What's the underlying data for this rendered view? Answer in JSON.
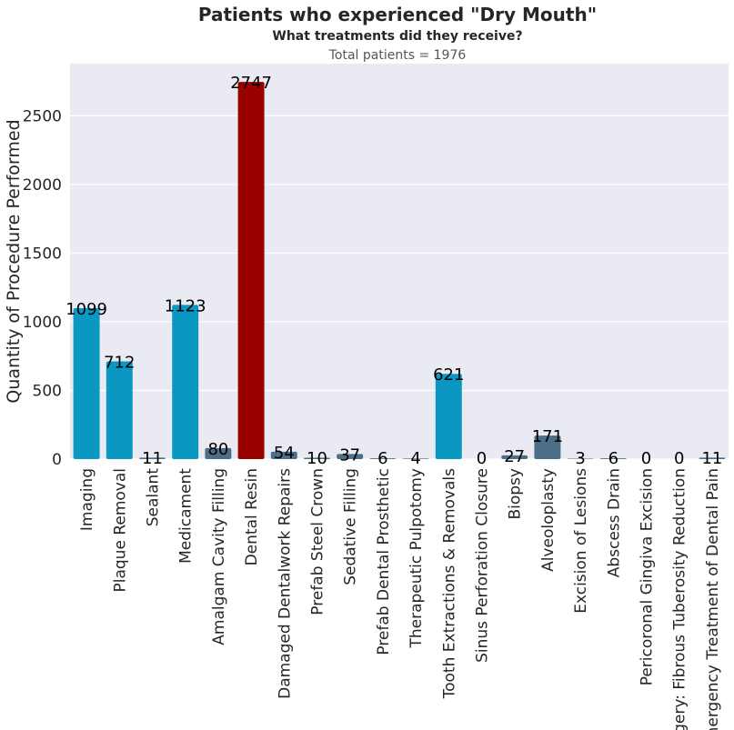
{
  "chart_data": {
    "type": "bar",
    "title": "Patients who experienced \"Dry Mouth\"",
    "subtitle": "What treatments did they receive?",
    "note": "Total patients = 1976",
    "xlabel": "",
    "ylabel": "Quantity of Procedure Performed",
    "ylim": [
      0,
      2880
    ],
    "yticks": [
      0,
      500,
      1000,
      1500,
      2000,
      2500
    ],
    "grid": true,
    "categories": [
      "Imaging",
      "Plaque Removal",
      "Sealant",
      "Medicament",
      "Amalgam Cavity Filling",
      "Dental Resin",
      "Damaged Dentalwork Repairs",
      "Prefab Steel Crown",
      "Sedative Filling",
      "Prefab Dental Prosthetic",
      "Therapeutic Pulpotomy",
      "Tooth Extractions & Removals",
      "Sinus Perforation Closure",
      "Biopsy",
      "Alveoloplasty",
      "Excision of Lesions",
      "Abscess Drain",
      "Pericoronal Gingiva Excision",
      "Surgery: Fibrous Tuberosity Reduction",
      "Emergency Treatment of Dental Pain"
    ],
    "values": [
      1099,
      712,
      11,
      1123,
      80,
      2747,
      54,
      10,
      37,
      6,
      4,
      621,
      0,
      27,
      171,
      3,
      6,
      0,
      0,
      11
    ],
    "bar_colors": [
      "#0a97c1",
      "#0a97c1",
      "#4c6e86",
      "#0a97c1",
      "#4c6e86",
      "#990000",
      "#4c6e86",
      "#4c6e86",
      "#4c6e86",
      "#4c6e86",
      "#4c6e86",
      "#0a97c1",
      "#4c6e86",
      "#4c6e86",
      "#4c6e86",
      "#4c6e86",
      "#4c6e86",
      "#4c6e86",
      "#4c6e86",
      "#4c6e86"
    ],
    "plot_background": "#eaeaf2"
  }
}
